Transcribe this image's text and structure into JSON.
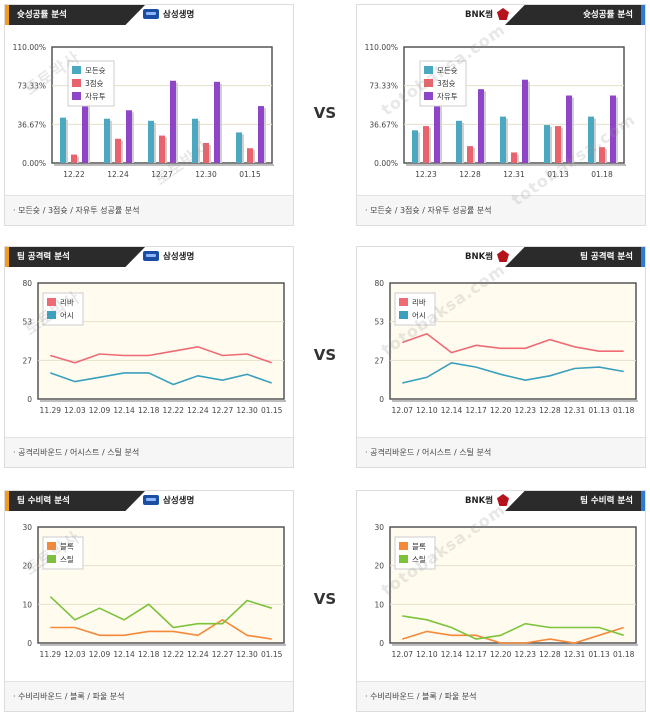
{
  "vs_label": "VS",
  "rows": [
    {
      "kind": "bar",
      "section_label": "슛성공률 분석",
      "footer": "모든슛 / 3점슛 / 자유투 성공률 분석",
      "left_team": "삼성생명",
      "right_team": "BNK썸",
      "charts": [
        {
          "type": "bar",
          "ylim": [
            0,
            110
          ],
          "yticks": [
            "0.00%",
            "36.67%",
            "73.33%",
            "110.00%"
          ],
          "categories": [
            "12.22",
            "12.24",
            "12.27",
            "12.30",
            "01.15"
          ],
          "series": [
            {
              "name": "모든슛",
              "color": "#4aa8c0",
              "values": [
                43,
                42,
                40,
                42,
                29
              ]
            },
            {
              "name": "3점슛",
              "color": "#e8636b",
              "values": [
                8,
                23,
                26,
                19,
                14
              ]
            },
            {
              "name": "자유투",
              "color": "#8f45c7",
              "values": [
                56,
                50,
                78,
                77,
                54
              ]
            }
          ]
        },
        {
          "type": "bar",
          "ylim": [
            0,
            110
          ],
          "yticks": [
            "0.00%",
            "36.67%",
            "73.33%",
            "110.00%"
          ],
          "categories": [
            "12.23",
            "12.28",
            "12.31",
            "01.13",
            "01.18"
          ],
          "series": [
            {
              "name": "모든슛",
              "color": "#4aa8c0",
              "values": [
                31,
                40,
                44,
                36,
                44
              ]
            },
            {
              "name": "3점슛",
              "color": "#e8636b",
              "values": [
                35,
                16,
                10,
                35,
                15
              ]
            },
            {
              "name": "자유투",
              "color": "#8f45c7",
              "values": [
                62,
                70,
                79,
                64,
                64
              ]
            }
          ]
        }
      ]
    },
    {
      "kind": "line",
      "section_label": "팀 공격력 분석",
      "footer": "공격리바운드 / 어시스트 / 스틸 분석",
      "left_team": "삼성생명",
      "right_team": "BNK썸",
      "charts": [
        {
          "type": "line",
          "ylim": [
            0,
            80
          ],
          "yticks": [
            "0",
            "27",
            "53",
            "80"
          ],
          "categories": [
            "11.29",
            "12.03",
            "12.09",
            "12.14",
            "12.18",
            "12.22",
            "12.24",
            "12.27",
            "12.30",
            "01.15"
          ],
          "series": [
            {
              "name": "리바",
              "color": "#ef6b74",
              "values": [
                30,
                25,
                31,
                30,
                30,
                33,
                36,
                30,
                31,
                25
              ]
            },
            {
              "name": "어시",
              "color": "#3aa0bd",
              "values": [
                18,
                12,
                15,
                18,
                18,
                10,
                16,
                13,
                17,
                11
              ]
            }
          ]
        },
        {
          "type": "line",
          "ylim": [
            0,
            80
          ],
          "yticks": [
            "0",
            "27",
            "53",
            "80"
          ],
          "categories": [
            "12.07",
            "12.10",
            "12.14",
            "12.17",
            "12.20",
            "12.23",
            "12.28",
            "12.31",
            "01.13",
            "01.18"
          ],
          "series": [
            {
              "name": "리바",
              "color": "#ef6b74",
              "values": [
                39,
                45,
                32,
                37,
                35,
                35,
                41,
                36,
                33,
                33
              ]
            },
            {
              "name": "어시",
              "color": "#3aa0bd",
              "values": [
                11,
                15,
                25,
                22,
                17,
                13,
                16,
                21,
                22,
                19
              ]
            }
          ]
        }
      ]
    },
    {
      "kind": "line",
      "section_label": "팀 수비력 분석",
      "footer": "수비리바운드 / 블록 / 파울 분석",
      "left_team": "삼성생명",
      "right_team": "BNK썸",
      "charts": [
        {
          "type": "line",
          "ylim": [
            0,
            30
          ],
          "yticks": [
            "0",
            "10",
            "20",
            "30"
          ],
          "categories": [
            "11.29",
            "12.03",
            "12.09",
            "12.14",
            "12.18",
            "12.22",
            "12.24",
            "12.27",
            "12.30",
            "01.15"
          ],
          "series": [
            {
              "name": "블록",
              "color": "#f5893a",
              "values": [
                4,
                4,
                2,
                2,
                3,
                3,
                2,
                6,
                2,
                1
              ]
            },
            {
              "name": "스틸",
              "color": "#7cc33b",
              "values": [
                12,
                6,
                9,
                6,
                10,
                4,
                5,
                5,
                11,
                9
              ]
            }
          ]
        },
        {
          "type": "line",
          "ylim": [
            0,
            30
          ],
          "yticks": [
            "0",
            "10",
            "20",
            "30"
          ],
          "categories": [
            "12.07",
            "12.10",
            "12.14",
            "12.17",
            "12.20",
            "12.23",
            "12.28",
            "12.31",
            "01.13",
            "01.18"
          ],
          "series": [
            {
              "name": "블록",
              "color": "#f5893a",
              "values": [
                1,
                3,
                2,
                2,
                0,
                0,
                1,
                0,
                2,
                4
              ]
            },
            {
              "name": "스틸",
              "color": "#7cc33b",
              "values": [
                7,
                6,
                4,
                1,
                2,
                5,
                4,
                4,
                4,
                2
              ]
            }
          ]
        }
      ]
    }
  ],
  "watermarks": [
    "토토박사",
    "totobaksa.com"
  ]
}
